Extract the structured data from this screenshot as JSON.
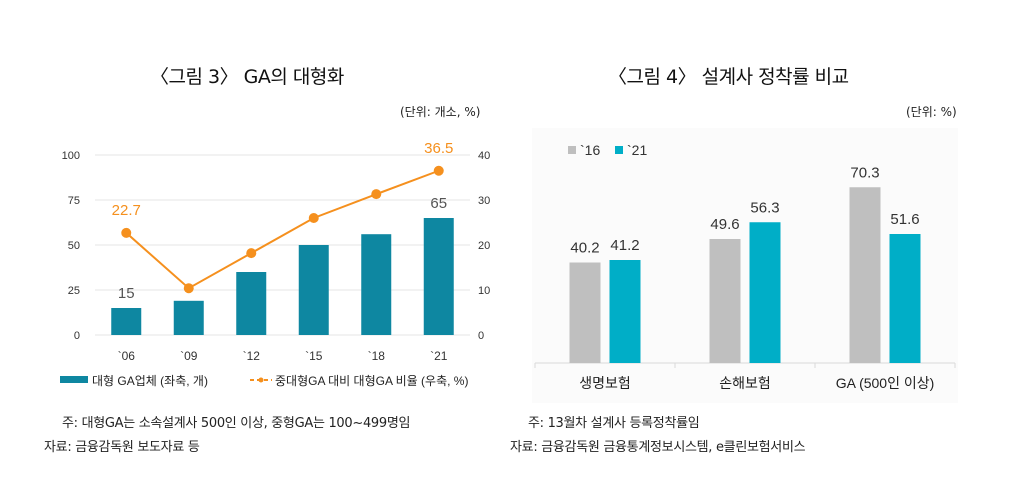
{
  "chart_data": [
    {
      "type": "bar",
      "combo": "bar+line (dual axis)",
      "title": "〈그림 3〉 GA의 대형화",
      "unit_label": "(단위: 개소, %)",
      "categories": [
        "`06",
        "`09",
        "`12",
        "`15",
        "`18",
        "`21"
      ],
      "series": [
        {
          "name": "대형 GA업체 (좌축, 개)",
          "type": "bar",
          "axis": "left",
          "color": "#0e87a1",
          "values": [
            15,
            19,
            35,
            50,
            56,
            65
          ],
          "labels": {
            "0": "15",
            "5": "65"
          }
        },
        {
          "name": "중대형GA 대비 대형GA 비율 (우축, %)",
          "type": "line",
          "axis": "right",
          "color": "#f5901e",
          "values": [
            22.7,
            10.4,
            18.2,
            26.0,
            31.3,
            36.5
          ],
          "labels": {
            "0": "22.7",
            "5": "36.5"
          }
        }
      ],
      "y_left": {
        "ylim": [
          0,
          100
        ],
        "ticks": [
          "0",
          "25",
          "50",
          "75",
          "100"
        ]
      },
      "y_right": {
        "ylim": [
          0,
          40
        ],
        "ticks": [
          "0",
          "10",
          "20",
          "30",
          "40"
        ]
      },
      "grid": true,
      "legend": "bottom",
      "notes": [
        "주: 대형GA는 소속설계사 500인 이상, 중형GA는 100~499명임",
        "자료: 금융감독원 보도자료 등"
      ]
    },
    {
      "type": "bar",
      "title": "〈그림 4〉 설계사 정착률 비교",
      "unit_label": "(단위: %)",
      "categories": [
        "생명보험",
        "손해보험",
        "GA (500인 이상)"
      ],
      "series": [
        {
          "name": "`16",
          "color": "#bfbfbf",
          "values": [
            40.2,
            49.6,
            70.3
          ]
        },
        {
          "name": "`21",
          "color": "#00aec7",
          "values": [
            41.2,
            56.3,
            51.6
          ]
        }
      ],
      "ylim": [
        0,
        80
      ],
      "grid": false,
      "legend": "top-left",
      "notes": [
        "주: 13월차 설계사 등록정착률임",
        "자료: 금융감독원 금융통계정보시스템, e클린보험서비스"
      ]
    }
  ]
}
